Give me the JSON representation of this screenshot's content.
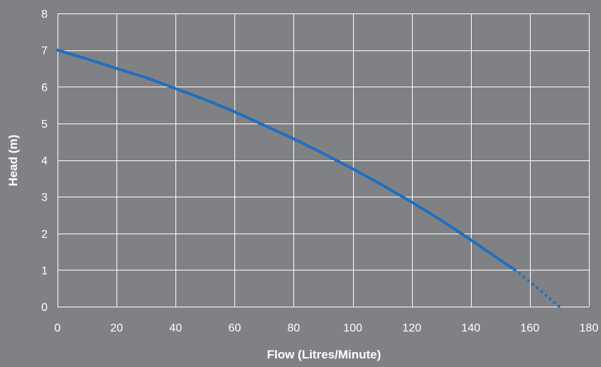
{
  "colors": {
    "background": "#808184",
    "grid": "#ffffff",
    "text": "#ffffff",
    "curve": "#1f6fbf"
  },
  "chart_data": {
    "type": "line",
    "title": "",
    "xlabel": "Flow (Litres/Minute)",
    "ylabel": "Head (m)",
    "xlim": [
      0,
      180
    ],
    "ylim": [
      0,
      8
    ],
    "x_ticks": [
      0,
      20,
      40,
      60,
      80,
      100,
      120,
      140,
      160,
      180
    ],
    "y_ticks": [
      0,
      1,
      2,
      3,
      4,
      5,
      6,
      7,
      8
    ],
    "grid": true,
    "legend": "none",
    "series": [
      {
        "style": "solid",
        "points": [
          [
            0,
            7.0
          ],
          [
            10,
            6.76
          ],
          [
            20,
            6.5
          ],
          [
            30,
            6.25
          ],
          [
            40,
            5.95
          ],
          [
            50,
            5.65
          ],
          [
            60,
            5.32
          ],
          [
            70,
            4.95
          ],
          [
            80,
            4.58
          ],
          [
            90,
            4.18
          ],
          [
            100,
            3.76
          ],
          [
            110,
            3.32
          ],
          [
            120,
            2.85
          ],
          [
            130,
            2.36
          ],
          [
            140,
            1.82
          ],
          [
            150,
            1.27
          ],
          [
            155,
            1.0
          ]
        ]
      },
      {
        "style": "dotted",
        "points": [
          [
            155,
            1.0
          ],
          [
            160,
            0.68
          ],
          [
            165,
            0.34
          ],
          [
            170,
            0.0
          ]
        ]
      }
    ]
  }
}
